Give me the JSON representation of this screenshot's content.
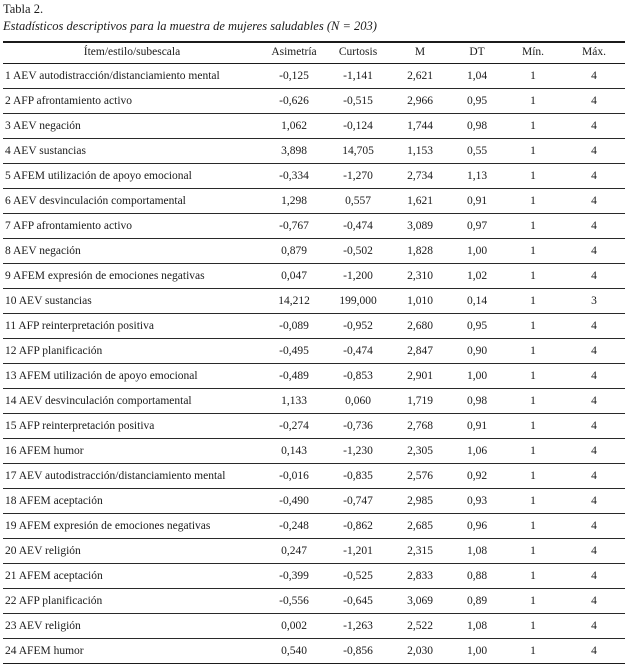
{
  "page": {
    "table_label": "Tabla 2.",
    "caption": "Estadísticos descriptivos para la muestra de mujeres saludables (N = 203)"
  },
  "table": {
    "columns": [
      "Ítem/estilo/subescala",
      "Asimetría",
      "Curtosis",
      "M",
      "DT",
      "Mín.",
      "Máx."
    ],
    "rows": [
      {
        "item": "1 AEV autodistracción/distanciamiento mental",
        "asimetria": "-0,125",
        "curtosis": "-1,141",
        "m": "2,621",
        "dt": "1,04",
        "min": "1",
        "max": "4"
      },
      {
        "item": "2 AFP afrontamiento activo",
        "asimetria": "-0,626",
        "curtosis": "-0,515",
        "m": "2,966",
        "dt": "0,95",
        "min": "1",
        "max": "4"
      },
      {
        "item": "3 AEV negación",
        "asimetria": "1,062",
        "curtosis": "-0,124",
        "m": "1,744",
        "dt": "0,98",
        "min": "1",
        "max": "4"
      },
      {
        "item": "4 AEV sustancias",
        "asimetria": "3,898",
        "curtosis": "14,705",
        "m": "1,153",
        "dt": "0,55",
        "min": "1",
        "max": "4"
      },
      {
        "item": "5 AFEM utilización de apoyo emocional",
        "asimetria": "-0,334",
        "curtosis": "-1,270",
        "m": "2,734",
        "dt": "1,13",
        "min": "1",
        "max": "4"
      },
      {
        "item": "6 AEV desvinculación comportamental",
        "asimetria": "1,298",
        "curtosis": "0,557",
        "m": "1,621",
        "dt": "0,91",
        "min": "1",
        "max": "4"
      },
      {
        "item": "7 AFP afrontamiento activo",
        "asimetria": "-0,767",
        "curtosis": "-0,474",
        "m": "3,089",
        "dt": "0,97",
        "min": "1",
        "max": "4"
      },
      {
        "item": "8 AEV negación",
        "asimetria": "0,879",
        "curtosis": "-0,502",
        "m": "1,828",
        "dt": "1,00",
        "min": "1",
        "max": "4"
      },
      {
        "item": "9 AFEM expresión de emociones negativas",
        "asimetria": "0,047",
        "curtosis": "-1,200",
        "m": "2,310",
        "dt": "1,02",
        "min": "1",
        "max": "4"
      },
      {
        "item": "10 AEV sustancias",
        "asimetria": "14,212",
        "curtosis": "199,000",
        "m": "1,010",
        "dt": "0,14",
        "min": "1",
        "max": "3"
      },
      {
        "item": "11 AFP reinterpretación positiva",
        "asimetria": "-0,089",
        "curtosis": "-0,952",
        "m": "2,680",
        "dt": "0,95",
        "min": "1",
        "max": "4"
      },
      {
        "item": "12 AFP planificación",
        "asimetria": "-0,495",
        "curtosis": "-0,474",
        "m": "2,847",
        "dt": "0,90",
        "min": "1",
        "max": "4"
      },
      {
        "item": "13 AFEM utilización de apoyo emocional",
        "asimetria": "-0,489",
        "curtosis": "-0,853",
        "m": "2,901",
        "dt": "1,00",
        "min": "1",
        "max": "4"
      },
      {
        "item": "14 AEV desvinculación comportamental",
        "asimetria": "1,133",
        "curtosis": "0,060",
        "m": "1,719",
        "dt": "0,98",
        "min": "1",
        "max": "4"
      },
      {
        "item": "15 AFP reinterpretación positiva",
        "asimetria": "-0,274",
        "curtosis": "-0,736",
        "m": "2,768",
        "dt": "0,91",
        "min": "1",
        "max": "4"
      },
      {
        "item": "16 AFEM humor",
        "asimetria": "0,143",
        "curtosis": "-1,230",
        "m": "2,305",
        "dt": "1,06",
        "min": "1",
        "max": "4"
      },
      {
        "item": "17 AEV autodistracción/distanciamiento mental",
        "asimetria": "-0,016",
        "curtosis": "-0,835",
        "m": "2,576",
        "dt": "0,92",
        "min": "1",
        "max": "4"
      },
      {
        "item": "18 AFEM aceptación",
        "asimetria": "-0,490",
        "curtosis": "-0,747",
        "m": "2,985",
        "dt": "0,93",
        "min": "1",
        "max": "4"
      },
      {
        "item": "19 AFEM expresión de emociones negativas",
        "asimetria": "-0,248",
        "curtosis": "-0,862",
        "m": "2,685",
        "dt": "0,96",
        "min": "1",
        "max": "4"
      },
      {
        "item": "20 AEV religión",
        "asimetria": "0,247",
        "curtosis": "-1,201",
        "m": "2,315",
        "dt": "1,08",
        "min": "1",
        "max": "4"
      },
      {
        "item": "21 AFEM aceptación",
        "asimetria": "-0,399",
        "curtosis": "-0,525",
        "m": "2,833",
        "dt": "0,88",
        "min": "1",
        "max": "4"
      },
      {
        "item": "22 AFP planificación",
        "asimetria": "-0,556",
        "curtosis": "-0,645",
        "m": "3,069",
        "dt": "0,89",
        "min": "1",
        "max": "4"
      },
      {
        "item": "23 AEV religión",
        "asimetria": "0,002",
        "curtosis": "-1,263",
        "m": "2,522",
        "dt": "1,08",
        "min": "1",
        "max": "4"
      },
      {
        "item": "24 AFEM humor",
        "asimetria": "0,540",
        "curtosis": "-0,856",
        "m": "2,030",
        "dt": "1,00",
        "min": "1",
        "max": "4"
      }
    ]
  }
}
